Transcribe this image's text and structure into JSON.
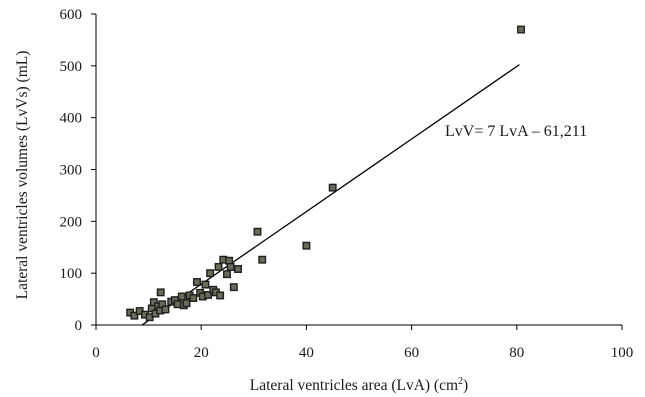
{
  "chart_data": {
    "type": "scatter",
    "title": "",
    "xlabel": "Lateral ventricles area (LvA) (cm",
    "xlabel_superscript": "2",
    "xlabel_suffix": ")",
    "ylabel": "Lateral ventricles volumes (LvVs) (mL)",
    "xlim": [
      0,
      100
    ],
    "ylim": [
      0,
      600
    ],
    "xticks": [
      0,
      20,
      40,
      60,
      80,
      100
    ],
    "yticks": [
      0,
      100,
      200,
      300,
      400,
      500,
      600
    ],
    "grid": false,
    "legend": "none",
    "marker_color": "#6b6b5a",
    "annotation": "LvV= 7 LvA – 61,211",
    "trendline": {
      "slope": 7,
      "intercept": -61.211,
      "x_range": [
        8.7,
        80.5
      ]
    },
    "points": [
      {
        "x": 6.5,
        "y": 24
      },
      {
        "x": 7.3,
        "y": 18
      },
      {
        "x": 8.3,
        "y": 27
      },
      {
        "x": 9.3,
        "y": 20
      },
      {
        "x": 10.2,
        "y": 15
      },
      {
        "x": 10.6,
        "y": 32
      },
      {
        "x": 11.0,
        "y": 44
      },
      {
        "x": 11.3,
        "y": 22
      },
      {
        "x": 11.8,
        "y": 36
      },
      {
        "x": 12.2,
        "y": 28
      },
      {
        "x": 12.3,
        "y": 63
      },
      {
        "x": 12.6,
        "y": 40
      },
      {
        "x": 13.2,
        "y": 30
      },
      {
        "x": 14.3,
        "y": 45
      },
      {
        "x": 15.0,
        "y": 48
      },
      {
        "x": 15.5,
        "y": 40
      },
      {
        "x": 16.3,
        "y": 55
      },
      {
        "x": 16.7,
        "y": 38
      },
      {
        "x": 17.2,
        "y": 42
      },
      {
        "x": 17.8,
        "y": 57
      },
      {
        "x": 18.5,
        "y": 52
      },
      {
        "x": 19.2,
        "y": 83
      },
      {
        "x": 19.8,
        "y": 62
      },
      {
        "x": 20.3,
        "y": 55
      },
      {
        "x": 20.8,
        "y": 78
      },
      {
        "x": 21.3,
        "y": 58
      },
      {
        "x": 21.7,
        "y": 100
      },
      {
        "x": 22.3,
        "y": 68
      },
      {
        "x": 22.8,
        "y": 63
      },
      {
        "x": 23.3,
        "y": 112
      },
      {
        "x": 23.6,
        "y": 57
      },
      {
        "x": 24.2,
        "y": 126
      },
      {
        "x": 24.9,
        "y": 98
      },
      {
        "x": 25.3,
        "y": 124
      },
      {
        "x": 25.6,
        "y": 112
      },
      {
        "x": 26.2,
        "y": 73
      },
      {
        "x": 27.0,
        "y": 108
      },
      {
        "x": 30.7,
        "y": 180
      },
      {
        "x": 31.6,
        "y": 126
      },
      {
        "x": 40.0,
        "y": 153
      },
      {
        "x": 45.0,
        "y": 265
      },
      {
        "x": 80.8,
        "y": 570
      }
    ]
  }
}
